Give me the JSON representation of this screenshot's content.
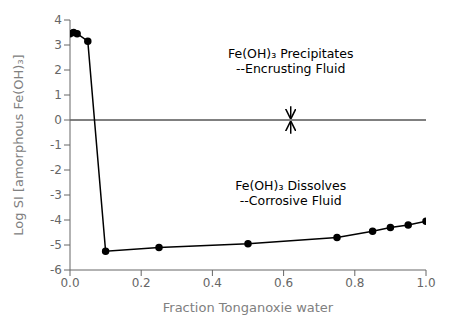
{
  "chart_data": {
    "type": "line",
    "x": [
      0.0,
      0.01,
      0.02,
      0.05,
      0.1,
      0.25,
      0.5,
      0.75,
      0.85,
      0.9,
      0.95,
      1.0
    ],
    "values": [
      3.45,
      3.5,
      3.45,
      3.15,
      -5.25,
      -5.1,
      -4.95,
      -4.7,
      -4.45,
      -4.3,
      -4.2,
      -4.05
    ],
    "color": "#000000",
    "marker": "circle",
    "xlim": [
      0,
      1
    ],
    "ylim": [
      -6,
      4
    ],
    "xticks": [
      {
        "value": 0,
        "label": "0.0"
      },
      0.2,
      0.4,
      0.6,
      0.8,
      {
        "value": 1,
        "label": "1.0"
      }
    ],
    "yticks": [
      -6,
      -5,
      -4,
      -3,
      -2,
      -1,
      0,
      1,
      2,
      3,
      4
    ],
    "xlabel": "Fraction Tonganoxie water",
    "ylabel": "Log SI [amorphous Fe(OH)₃]",
    "grid": false,
    "hline": 0,
    "annotations": [
      {
        "text": [
          "Fe(OH)₃ Precipitates",
          "--Encrusting Fluid"
        ],
        "x": 0.62,
        "y": 3.0,
        "arrow": {
          "from": 0.55,
          "to": 0.08
        }
      },
      {
        "text": [
          "Fe(OH)₃ Dissolves",
          "--Corrosive Fluid"
        ],
        "x": 0.62,
        "y": -2.3,
        "arrow": {
          "from": -0.55,
          "to": -0.08
        }
      }
    ]
  }
}
